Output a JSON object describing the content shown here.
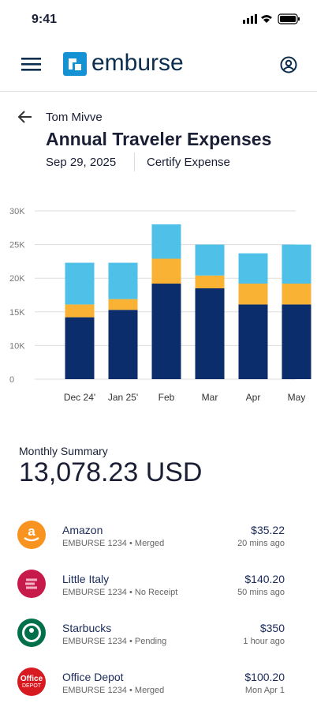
{
  "status_bar": {
    "time": "9:41"
  },
  "header": {
    "brand": "emburse"
  },
  "report": {
    "traveler": "Tom Mivve",
    "title": "Annual Traveler Expenses",
    "date": "Sep 29, 2025",
    "program": "Certify Expense"
  },
  "chart_data": {
    "type": "stacked-bar",
    "categories": [
      "Dec 24'",
      "Jan 25'",
      "Feb",
      "Mar",
      "Apr",
      "May"
    ],
    "series": [
      {
        "color": "#0b2d6b",
        "values": [
          14200,
          15300,
          19200,
          18500,
          16100,
          16100
        ]
      },
      {
        "color": "#f9b233",
        "values": [
          1900,
          1600,
          3700,
          1900,
          3100,
          3100
        ]
      },
      {
        "color": "#4fc0e8",
        "values": [
          6200,
          5400,
          5100,
          4600,
          4500,
          5800
        ]
      }
    ],
    "ylim": [
      0,
      30000
    ],
    "yticks": [
      0,
      {
        "value": 10000,
        "label": "10K"
      },
      {
        "value": 15000,
        "label": "15K"
      },
      {
        "value": 20000,
        "label": "20K"
      },
      {
        "value": 25000,
        "label": "25K"
      },
      {
        "value": 30000,
        "label": "30K"
      }
    ],
    "grid": true
  },
  "summary": {
    "label": "Monthly Summary",
    "amount": "13,078.23 USD"
  },
  "transactions": [
    {
      "merchant": "Amazon",
      "account": "EMBURSE 1234",
      "status": "Merged",
      "amount": "$35.22",
      "time": "20 mins ago"
    },
    {
      "merchant": "Little Italy",
      "account": "EMBURSE 1234",
      "status": "No Receipt",
      "amount": "$140.20",
      "time": "50 mins ago"
    },
    {
      "merchant": "Starbucks",
      "account": "EMBURSE 1234",
      "status": "Pending",
      "amount": "$350",
      "time": "1 hour ago"
    },
    {
      "merchant": "Office Depot",
      "account": "EMBURSE 1234",
      "status": "Merged",
      "amount": "$100.20",
      "time": "Mon Apr 1"
    }
  ]
}
